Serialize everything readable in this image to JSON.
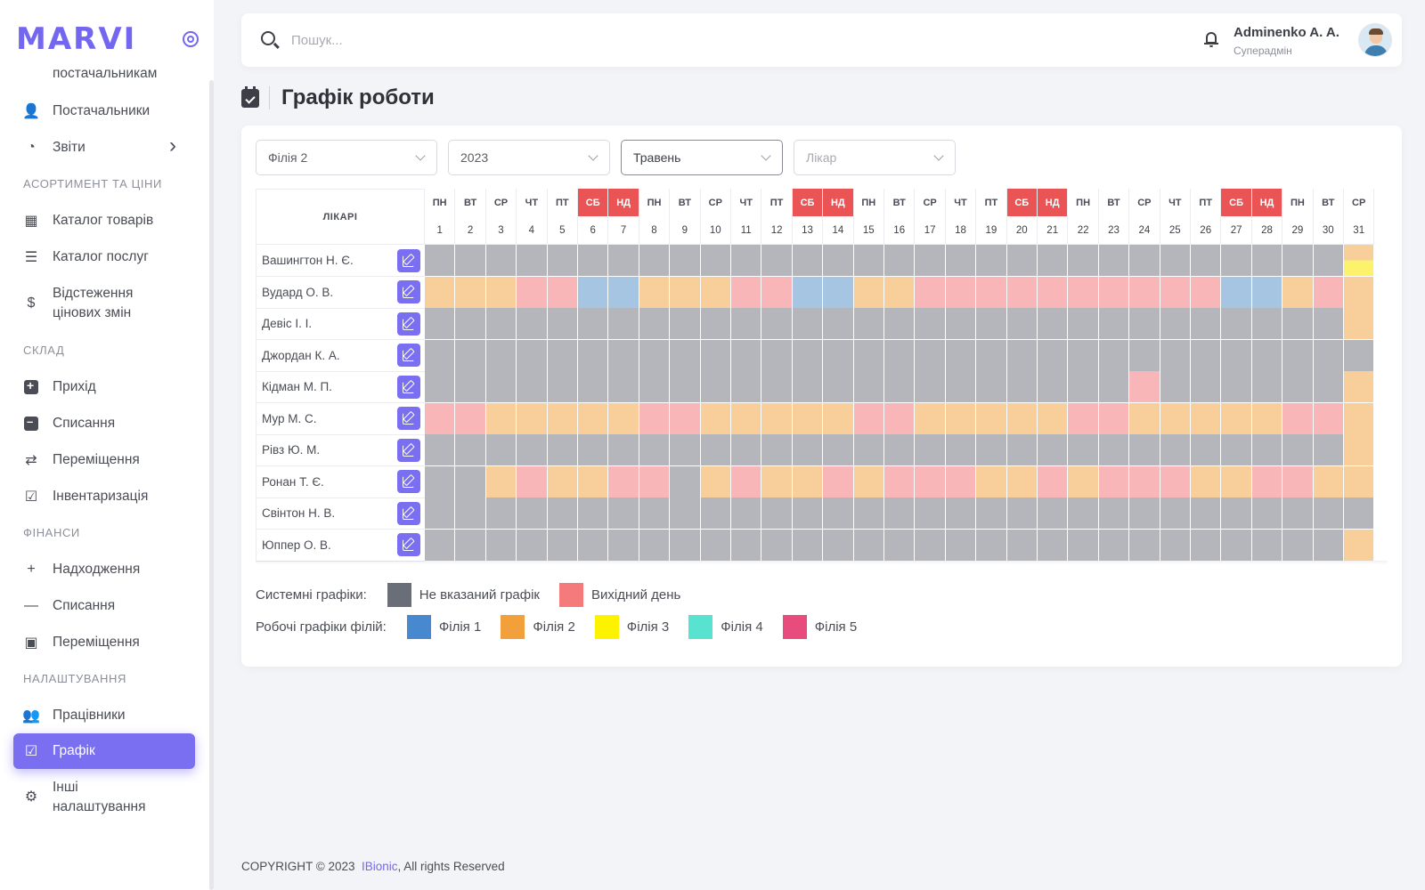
{
  "brand": {
    "logo": "MARVI"
  },
  "sidebar": {
    "cut_item": "постачальникам",
    "items_top": [
      {
        "label": "Постачальники",
        "icon": "user-icon"
      },
      {
        "label": "Звіти",
        "icon": "pie-chart-icon",
        "has_arrow": true
      }
    ],
    "sections": [
      {
        "title": "АСОРТИМЕНТ ТА ЦІНИ",
        "items": [
          {
            "label": "Каталог товарів",
            "icon": "store-icon"
          },
          {
            "label": "Каталог послуг",
            "icon": "list-icon"
          },
          {
            "label": "Відстеження цінових змін",
            "icon": "price-tag-icon",
            "tall": true
          }
        ]
      },
      {
        "title": "СКЛАД",
        "items": [
          {
            "label": "Прихід",
            "icon": "folder-plus-icon"
          },
          {
            "label": "Списання",
            "icon": "folder-minus-icon"
          },
          {
            "label": "Переміщення",
            "icon": "exchange-icon"
          },
          {
            "label": "Інвентаризація",
            "icon": "inventory-icon"
          }
        ]
      },
      {
        "title": "ФІНАНСИ",
        "items": [
          {
            "label": "Надходження",
            "icon": "plus-icon"
          },
          {
            "label": "Списання",
            "icon": "minus-icon"
          },
          {
            "label": "Переміщення",
            "icon": "money-icon"
          }
        ]
      },
      {
        "title": "НАЛАШТУВАННЯ",
        "items": [
          {
            "label": "Працівники",
            "icon": "users-gear-icon"
          },
          {
            "label": "Графік",
            "icon": "calendar-check-icon",
            "active": true
          },
          {
            "label": "Інші налаштування",
            "icon": "gears-icon",
            "tall": true
          }
        ]
      }
    ]
  },
  "header": {
    "search_placeholder": "Пошук...",
    "user_name": "Adminenko A. A.",
    "user_role": "Суперадмін"
  },
  "page": {
    "title": "Графік роботи"
  },
  "filters": {
    "branch": "Філія 2",
    "year": "2023",
    "month": "Травень",
    "doctor_placeholder": "Лікар"
  },
  "schedule": {
    "doctors_header": "ЛІКАРІ",
    "weekdays": [
      "ПН",
      "ВТ",
      "СР",
      "ЧТ",
      "ПТ",
      "СБ",
      "НД",
      "ПН",
      "ВТ",
      "СР",
      "ЧТ",
      "ПТ",
      "СБ",
      "НД",
      "ПН",
      "ВТ",
      "СР",
      "ЧТ",
      "ПТ",
      "СБ",
      "НД",
      "ПН",
      "ВТ",
      "СР",
      "ЧТ",
      "ПТ",
      "СБ",
      "НД",
      "ПН",
      "ВТ",
      "СР"
    ],
    "weekend_days": [
      6,
      7,
      13,
      14,
      20,
      21,
      27,
      28
    ],
    "days": [
      "1",
      "2",
      "3",
      "4",
      "5",
      "6",
      "7",
      "8",
      "9",
      "10",
      "11",
      "12",
      "13",
      "14",
      "15",
      "16",
      "17",
      "18",
      "19",
      "20",
      "21",
      "22",
      "23",
      "24",
      "25",
      "26",
      "27",
      "28",
      "29",
      "30",
      "31"
    ],
    "colors": {
      "G": "#b4b6bc",
      "O": "#f8cf9b",
      "P": "#f8b6b8",
      "B": "#a6c5e3",
      "Y": "#fdf26b"
    },
    "doctors": [
      {
        "name": "Вашингтон Н. Є.",
        "cells": "GGGGGGGGGGGGGGGGGGGGGGGGGGGGGGO",
        "extra_last": "Y"
      },
      {
        "name": "Вудард О. В.",
        "cells": "OOOPPBBOOOPPBBOOPPPPPPPPPPBBOPO"
      },
      {
        "name": "Девіс І. І.",
        "cells": "GGGGGGGGGGGGGGGGGGGGGGGGGGGGGGO"
      },
      {
        "name": "Джордан К. А.",
        "cells": "GGGGGGGGGGGGGGGGGGGGGGGGGGGGGGG"
      },
      {
        "name": "Кідман М. П.",
        "cells": "GGGGGGGGGGGGGGGGGGGGGGGPGGGGGGO"
      },
      {
        "name": "Мур М. С.",
        "cells": "PPOOOOOPPOOOOOPPOOOOOPPOOOOOPPO"
      },
      {
        "name": "Рівз Ю. М.",
        "cells": "GGGGGGGGGGGGGGGGGGGGGGGGGGGGGGO"
      },
      {
        "name": "Ронан Т. Є.",
        "cells": "GGOPOOPPGOPOOPOPPPOOPOPPPOOPPOO"
      },
      {
        "name": "Свінтон Н. В.",
        "cells": "GGGGGGGGGGGGGGGGGGGGGGGGGGGGGGG"
      },
      {
        "name": "Юппер О. В.",
        "cells": "GGGGGGGGGGGGGGGGGGGGGGGGGGGGGGO"
      }
    ]
  },
  "legend": {
    "system_label": "Системні графіки:",
    "system_items": [
      {
        "label": "Не вказаний графік",
        "color": "#6a6e78"
      },
      {
        "label": "Вихідний день",
        "color": "#f47a7c"
      }
    ],
    "work_label": "Робочі графіки філій:",
    "work_items": [
      {
        "label": "Філія 1",
        "color": "#4888cf"
      },
      {
        "label": "Філія 2",
        "color": "#f2a03c"
      },
      {
        "label": "Філія 3",
        "color": "#fdf200"
      },
      {
        "label": "Філія 4",
        "color": "#58e2d0"
      },
      {
        "label": "Філія 5",
        "color": "#e84c7c"
      }
    ]
  },
  "footer": {
    "prefix": "COPYRIGHT © 2023",
    "brand": "IBionic",
    "suffix": ", All rights Reserved"
  }
}
